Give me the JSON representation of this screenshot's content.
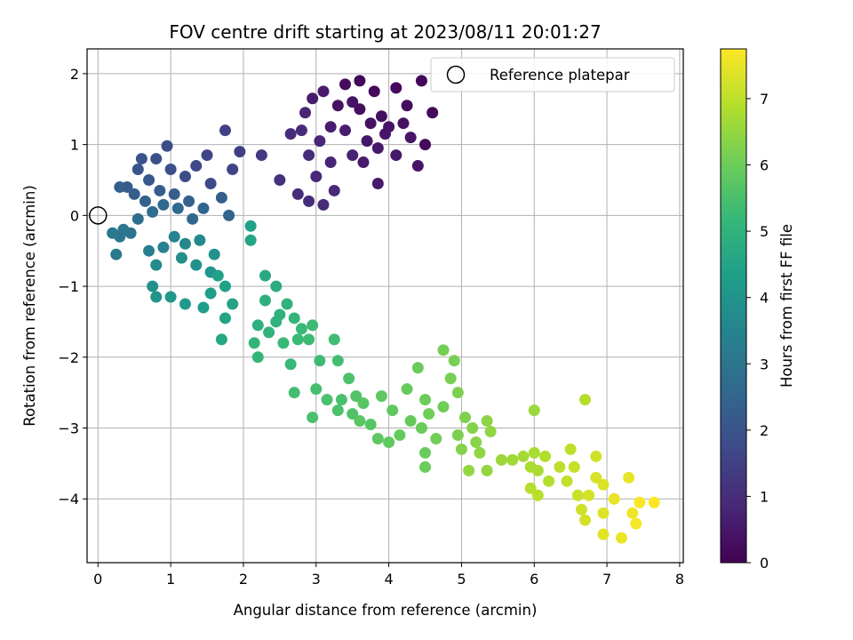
{
  "chart_data": {
    "type": "scatter",
    "title": "FOV centre drift starting at 2023/08/11 20:01:27",
    "xlabel": "Angular distance from reference (arcmin)",
    "ylabel": "Rotation from reference (arcmin)",
    "colorbar_label": "Hours from first FF file",
    "xlim": [
      -0.15,
      8.05
    ],
    "ylim": [
      -4.9,
      2.35
    ],
    "xticks": [
      0,
      1,
      2,
      3,
      4,
      5,
      6,
      7,
      8
    ],
    "yticks": [
      -4,
      -3,
      -2,
      -1,
      0,
      1,
      2
    ],
    "colorbar_range": [
      0,
      7.75
    ],
    "colorbar_ticks": [
      0,
      1,
      2,
      3,
      4,
      5,
      6,
      7
    ],
    "colormap": "viridis",
    "grid": true,
    "legend": {
      "position": "top-right",
      "entries": [
        "Reference platepar"
      ]
    },
    "reference_point": {
      "x": 0,
      "y": 0
    },
    "points": [
      [
        3.6,
        1.9,
        0.1
      ],
      [
        3.8,
        1.75,
        0.15
      ],
      [
        4.1,
        1.8,
        0.2
      ],
      [
        4.45,
        1.9,
        0.1
      ],
      [
        3.4,
        1.85,
        0.25
      ],
      [
        3.6,
        1.5,
        0.3
      ],
      [
        3.9,
        1.4,
        0.3
      ],
      [
        4.2,
        1.3,
        0.35
      ],
      [
        3.3,
        1.55,
        0.35
      ],
      [
        3.5,
        1.6,
        0.4
      ],
      [
        4.0,
        1.25,
        0.4
      ],
      [
        4.3,
        1.1,
        0.45
      ],
      [
        3.7,
        1.05,
        0.5
      ],
      [
        3.85,
        0.95,
        0.5
      ],
      [
        4.5,
        1.0,
        0.2
      ],
      [
        4.6,
        1.45,
        0.15
      ],
      [
        3.1,
        1.75,
        0.55
      ],
      [
        2.95,
        1.65,
        0.6
      ],
      [
        3.2,
        1.25,
        0.6
      ],
      [
        3.4,
        1.2,
        0.65
      ],
      [
        4.4,
        0.7,
        0.4
      ],
      [
        3.85,
        0.45,
        0.55
      ],
      [
        4.1,
        0.85,
        0.5
      ],
      [
        3.5,
        0.85,
        0.75
      ],
      [
        3.2,
        0.75,
        0.8
      ],
      [
        3.0,
        0.55,
        0.85
      ],
      [
        3.25,
        0.35,
        0.9
      ],
      [
        3.1,
        0.15,
        0.95
      ],
      [
        2.9,
        0.2,
        1.0
      ],
      [
        2.75,
        0.3,
        1.0
      ],
      [
        3.05,
        1.05,
        0.85
      ],
      [
        2.8,
        1.2,
        0.95
      ],
      [
        2.65,
        1.15,
        1.0
      ],
      [
        2.9,
        0.85,
        0.95
      ],
      [
        2.5,
        0.5,
        1.1
      ],
      [
        3.65,
        0.75,
        0.6
      ],
      [
        3.95,
        1.15,
        0.45
      ],
      [
        4.25,
        1.55,
        0.25
      ],
      [
        3.75,
        1.3,
        0.35
      ],
      [
        2.85,
        1.45,
        0.8
      ],
      [
        2.25,
        0.85,
        1.3
      ],
      [
        1.75,
        1.2,
        1.5
      ],
      [
        1.95,
        0.9,
        1.45
      ],
      [
        1.5,
        0.85,
        1.6
      ],
      [
        1.35,
        0.7,
        1.7
      ],
      [
        1.85,
        0.65,
        1.6
      ],
      [
        1.55,
        0.45,
        1.7
      ],
      [
        1.2,
        0.55,
        1.8
      ],
      [
        1.0,
        0.65,
        1.9
      ],
      [
        0.95,
        0.98,
        1.8
      ],
      [
        0.8,
        0.8,
        1.9
      ],
      [
        0.6,
        0.8,
        2.0
      ],
      [
        0.55,
        0.65,
        2.0
      ],
      [
        0.7,
        0.5,
        2.1
      ],
      [
        0.4,
        0.4,
        2.2
      ],
      [
        0.3,
        0.4,
        2.3
      ],
      [
        0.5,
        0.3,
        2.3
      ],
      [
        0.65,
        0.2,
        2.4
      ],
      [
        0.85,
        0.35,
        2.3
      ],
      [
        1.05,
        0.3,
        2.3
      ],
      [
        1.25,
        0.2,
        2.4
      ],
      [
        1.45,
        0.1,
        2.5
      ],
      [
        1.7,
        0.25,
        2.3
      ],
      [
        1.8,
        0.0,
        2.5
      ],
      [
        1.3,
        -0.05,
        2.6
      ],
      [
        1.1,
        0.1,
        2.6
      ],
      [
        0.9,
        0.15,
        2.6
      ],
      [
        0.75,
        0.05,
        2.7
      ],
      [
        0.55,
        -0.05,
        2.8
      ],
      [
        0.45,
        -0.25,
        2.9
      ],
      [
        0.3,
        -0.3,
        3.0
      ],
      [
        0.2,
        -0.25,
        3.1
      ],
      [
        0.35,
        -0.2,
        3.0
      ],
      [
        0.25,
        -0.55,
        3.1
      ],
      [
        0.7,
        -0.5,
        3.3
      ],
      [
        0.9,
        -0.45,
        3.4
      ],
      [
        1.05,
        -0.3,
        3.5
      ],
      [
        1.2,
        -0.4,
        3.6
      ],
      [
        1.4,
        -0.35,
        3.7
      ],
      [
        1.15,
        -0.6,
        3.8
      ],
      [
        1.35,
        -0.7,
        3.9
      ],
      [
        1.6,
        -0.55,
        3.9
      ],
      [
        1.55,
        -0.8,
        4.0
      ],
      [
        0.8,
        -0.7,
        3.7
      ],
      [
        0.75,
        -1.0,
        3.9
      ],
      [
        0.8,
        -1.15,
        4.0
      ],
      [
        1.0,
        -1.15,
        4.1
      ],
      [
        1.2,
        -1.25,
        4.2
      ],
      [
        1.45,
        -1.3,
        4.3
      ],
      [
        1.55,
        -1.1,
        4.3
      ],
      [
        1.65,
        -0.85,
        4.4
      ],
      [
        1.75,
        -1.0,
        4.4
      ],
      [
        1.85,
        -1.25,
        4.5
      ],
      [
        1.75,
        -1.45,
        4.5
      ],
      [
        1.7,
        -1.75,
        4.6
      ],
      [
        2.1,
        -0.15,
        4.4
      ],
      [
        2.1,
        -0.35,
        4.5
      ],
      [
        2.3,
        -0.85,
        4.7
      ],
      [
        2.45,
        -1.0,
        4.8
      ],
      [
        2.3,
        -1.2,
        4.9
      ],
      [
        2.5,
        -1.4,
        5.0
      ],
      [
        2.2,
        -1.55,
        4.9
      ],
      [
        2.35,
        -1.65,
        5.0
      ],
      [
        2.6,
        -1.25,
        5.0
      ],
      [
        2.7,
        -1.45,
        5.1
      ],
      [
        2.15,
        -1.8,
        5.1
      ],
      [
        2.2,
        -2.0,
        5.1
      ],
      [
        2.55,
        -1.8,
        5.2
      ],
      [
        2.65,
        -2.1,
        5.2
      ],
      [
        2.75,
        -1.75,
        5.25
      ],
      [
        2.95,
        -1.55,
        5.3
      ],
      [
        2.9,
        -1.75,
        5.3
      ],
      [
        3.05,
        -2.05,
        5.3
      ],
      [
        3.25,
        -1.75,
        5.35
      ],
      [
        3.3,
        -2.05,
        5.4
      ],
      [
        2.7,
        -2.5,
        5.4
      ],
      [
        3.0,
        -2.45,
        5.45
      ],
      [
        3.15,
        -2.6,
        5.5
      ],
      [
        3.3,
        -2.75,
        5.5
      ],
      [
        3.45,
        -2.3,
        5.55
      ],
      [
        3.55,
        -2.55,
        5.6
      ],
      [
        3.5,
        -2.8,
        5.6
      ],
      [
        3.65,
        -2.65,
        5.7
      ],
      [
        3.75,
        -2.95,
        5.7
      ],
      [
        2.95,
        -2.85,
        5.5
      ],
      [
        3.6,
        -2.9,
        5.75
      ],
      [
        3.85,
        -3.15,
        5.8
      ],
      [
        3.9,
        -2.55,
        5.8
      ],
      [
        4.05,
        -2.75,
        5.85
      ],
      [
        4.15,
        -3.1,
        5.9
      ],
      [
        4.3,
        -2.9,
        5.9
      ],
      [
        4.45,
        -3.0,
        5.95
      ],
      [
        4.25,
        -2.45,
        5.9
      ],
      [
        4.4,
        -2.15,
        5.95
      ],
      [
        4.5,
        -2.6,
        6.0
      ],
      [
        4.55,
        -2.8,
        6.05
      ],
      [
        4.65,
        -3.15,
        6.05
      ],
      [
        4.75,
        -1.9,
        6.1
      ],
      [
        4.85,
        -2.3,
        6.15
      ],
      [
        4.9,
        -2.05,
        6.15
      ],
      [
        4.95,
        -2.5,
        6.2
      ],
      [
        5.05,
        -2.85,
        6.25
      ],
      [
        4.95,
        -3.1,
        6.2
      ],
      [
        5.0,
        -3.3,
        6.3
      ],
      [
        5.15,
        -3.0,
        6.3
      ],
      [
        5.2,
        -3.2,
        6.35
      ],
      [
        5.35,
        -2.9,
        6.4
      ],
      [
        5.4,
        -3.05,
        6.45
      ],
      [
        5.25,
        -3.35,
        6.45
      ],
      [
        5.1,
        -3.6,
        6.5
      ],
      [
        5.35,
        -3.6,
        6.5
      ],
      [
        5.55,
        -3.45,
        6.6
      ],
      [
        5.7,
        -3.45,
        6.65
      ],
      [
        5.85,
        -3.4,
        6.7
      ],
      [
        6.0,
        -3.35,
        6.75
      ],
      [
        6.05,
        -3.6,
        6.8
      ],
      [
        6.15,
        -3.4,
        6.85
      ],
      [
        6.2,
        -3.75,
        6.9
      ],
      [
        5.95,
        -3.85,
        6.9
      ],
      [
        6.05,
        -3.95,
        6.95
      ],
      [
        6.0,
        -2.75,
        6.6
      ],
      [
        6.35,
        -3.55,
        7.0
      ],
      [
        6.45,
        -3.75,
        7.05
      ],
      [
        6.55,
        -3.55,
        7.1
      ],
      [
        6.5,
        -3.3,
        7.0
      ],
      [
        6.6,
        -3.95,
        7.15
      ],
      [
        6.65,
        -4.15,
        7.2
      ],
      [
        6.75,
        -3.95,
        7.25
      ],
      [
        6.7,
        -4.3,
        7.25
      ],
      [
        6.85,
        -3.7,
        7.3
      ],
      [
        6.7,
        -2.6,
        6.9
      ],
      [
        6.95,
        -3.8,
        7.35
      ],
      [
        6.95,
        -4.2,
        7.4
      ],
      [
        6.95,
        -4.5,
        7.45
      ],
      [
        7.1,
        -4.0,
        7.5
      ],
      [
        7.2,
        -4.55,
        7.55
      ],
      [
        7.3,
        -3.7,
        7.5
      ],
      [
        7.35,
        -4.2,
        7.6
      ],
      [
        7.4,
        -4.35,
        7.65
      ],
      [
        7.45,
        -4.05,
        7.7
      ],
      [
        7.65,
        -4.05,
        7.75
      ],
      [
        6.85,
        -3.4,
        7.2
      ],
      [
        5.95,
        -3.55,
        6.8
      ],
      [
        4.75,
        -2.7,
        6.05
      ],
      [
        4.5,
        -3.35,
        5.95
      ],
      [
        4.5,
        -3.55,
        6.0
      ],
      [
        4.0,
        -3.2,
        5.85
      ],
      [
        3.35,
        -2.6,
        5.5
      ],
      [
        2.45,
        -1.5,
        5.0
      ],
      [
        2.8,
        -1.6,
        5.25
      ]
    ]
  }
}
